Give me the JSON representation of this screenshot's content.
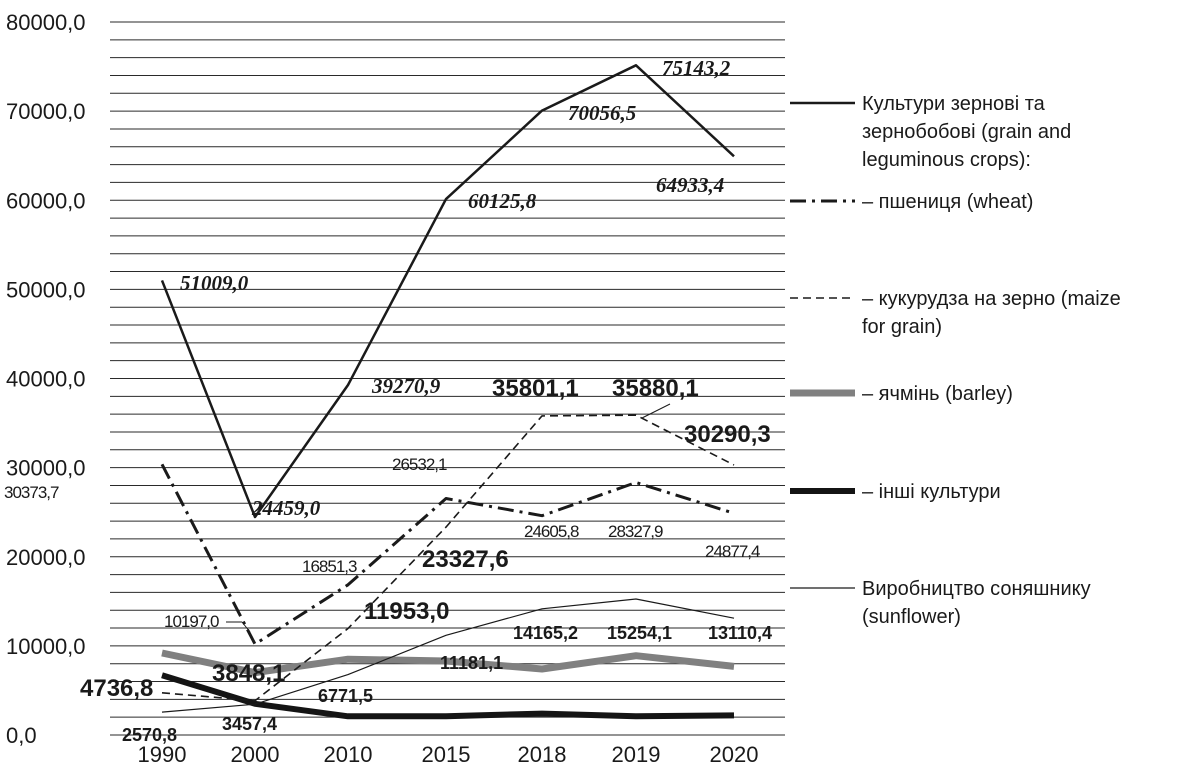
{
  "chart_data": {
    "type": "line",
    "categories": [
      "1990",
      "2000",
      "2010",
      "2015",
      "2018",
      "2019",
      "2020"
    ],
    "ylim": [
      0,
      80000
    ],
    "y_ticks": [
      "0,0",
      "10000,0",
      "20000,0",
      "30000,0",
      "40000,0",
      "50000,0",
      "60000,0",
      "70000,0",
      "80000,0"
    ],
    "grid": true,
    "legend_position": "right",
    "series": [
      {
        "name": "Культури зернові та зернобобові (grain and leguminous crops):",
        "style": "solid",
        "color": "#1a1a1a",
        "values": [
          51009.0,
          24459.0,
          39270.9,
          60125.8,
          70056.5,
          75143.2,
          64933.4
        ],
        "labels": [
          "51009,0",
          "24459,0",
          "39270,9",
          "60125,8",
          "70056,5",
          "75143,2",
          "64933,4"
        ]
      },
      {
        "name": "– пшениця (wheat)",
        "style": "dash-dot",
        "color": "#1a1a1a",
        "values": [
          30373.7,
          10197.0,
          16851.3,
          26532.1,
          24605.8,
          28327.9,
          24877.4
        ],
        "labels": [
          "30373,7",
          "10197,0",
          "16851,3",
          "26532,1",
          "24605,8",
          "28327,9",
          "24877,4"
        ]
      },
      {
        "name": "– кукурудза на зерно (maize for grain)",
        "style": "dashed",
        "color": "#1a1a1a",
        "values": [
          4736.8,
          3848.1,
          11953.0,
          23327.6,
          35801.1,
          35880.1,
          30290.3
        ],
        "labels": [
          "4736,8",
          "3848,1",
          "11953,0",
          "23327,6",
          "35801,1",
          "35880,1",
          "30290,3"
        ]
      },
      {
        "name": "– ячмінь (barley)",
        "style": "thick-gray",
        "color": "#808080",
        "values": [
          9200,
          7000,
          8500,
          8300,
          7400,
          8900,
          7700
        ]
      },
      {
        "name": "– інші культури",
        "style": "thick-black",
        "color": "#141414",
        "values": [
          6700,
          3500,
          2100,
          2100,
          2400,
          2100,
          2200
        ]
      },
      {
        "name": "Виробництво соняшнику (sunflower)",
        "style": "thin",
        "color": "#1a1a1a",
        "values": [
          2570.8,
          3457.4,
          6771.5,
          11181.1,
          14165.2,
          15254.1,
          13110.4
        ],
        "labels": [
          "2570,8",
          "3457,4",
          "6771,5",
          "11181,1",
          "14165,2",
          "15254,1",
          "13110,4"
        ]
      }
    ],
    "legend": [
      {
        "line1": "Культури зернові та",
        "line2": "зернобобові (grain and",
        "line3": "leguminous crops):"
      },
      {
        "line1": "– пшениця (wheat)"
      },
      {
        "line1": "– кукурудза на зерно (maize",
        "line2": "for grain)"
      },
      {
        "line1": "– ячмінь (barley)"
      },
      {
        "line1": "– інші культури"
      },
      {
        "line1": "Виробництво соняшнику",
        "line2": "(sunflower)"
      }
    ]
  }
}
